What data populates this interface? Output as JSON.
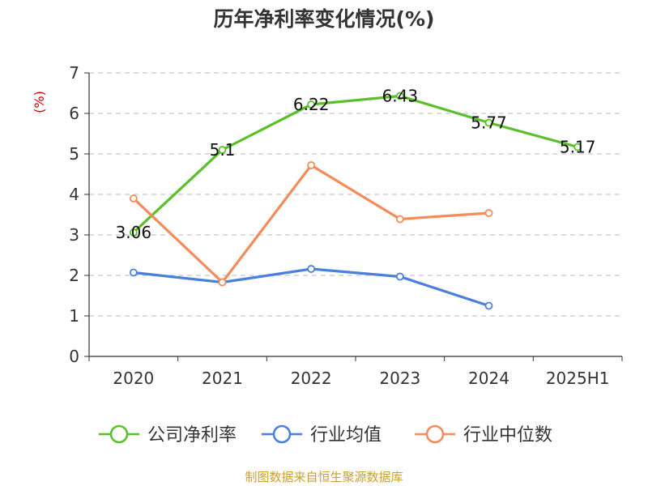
{
  "chart_data": {
    "type": "line",
    "title": "历年净利率变化情况(%)",
    "ylabel": "(%)",
    "xlabel": "",
    "categories": [
      "2020",
      "2021",
      "2022",
      "2023",
      "2024",
      "2025H1"
    ],
    "yticks": [
      "0",
      "1",
      "2",
      "3",
      "4",
      "5",
      "6",
      "7"
    ],
    "ylim": [
      0,
      7
    ],
    "grid": true,
    "legend_position": "bottom",
    "series": [
      {
        "name": "公司净利率",
        "color": "#5bbf2a",
        "values": [
          3.06,
          5.1,
          6.22,
          6.43,
          5.77,
          5.17
        ],
        "labels": [
          "3.06",
          "5.1",
          "6.22",
          "6.43",
          "5.77",
          "5.17"
        ]
      },
      {
        "name": "行业均值",
        "color": "#4a7fdc",
        "values": [
          2.07,
          1.83,
          2.16,
          1.97,
          1.25,
          null
        ]
      },
      {
        "name": "行业中位数",
        "color": "#f28c5a",
        "values": [
          3.9,
          1.83,
          4.72,
          3.39,
          3.54,
          null
        ]
      }
    ]
  },
  "footer": {
    "source": "制图数据来自恒生聚源数据库"
  }
}
